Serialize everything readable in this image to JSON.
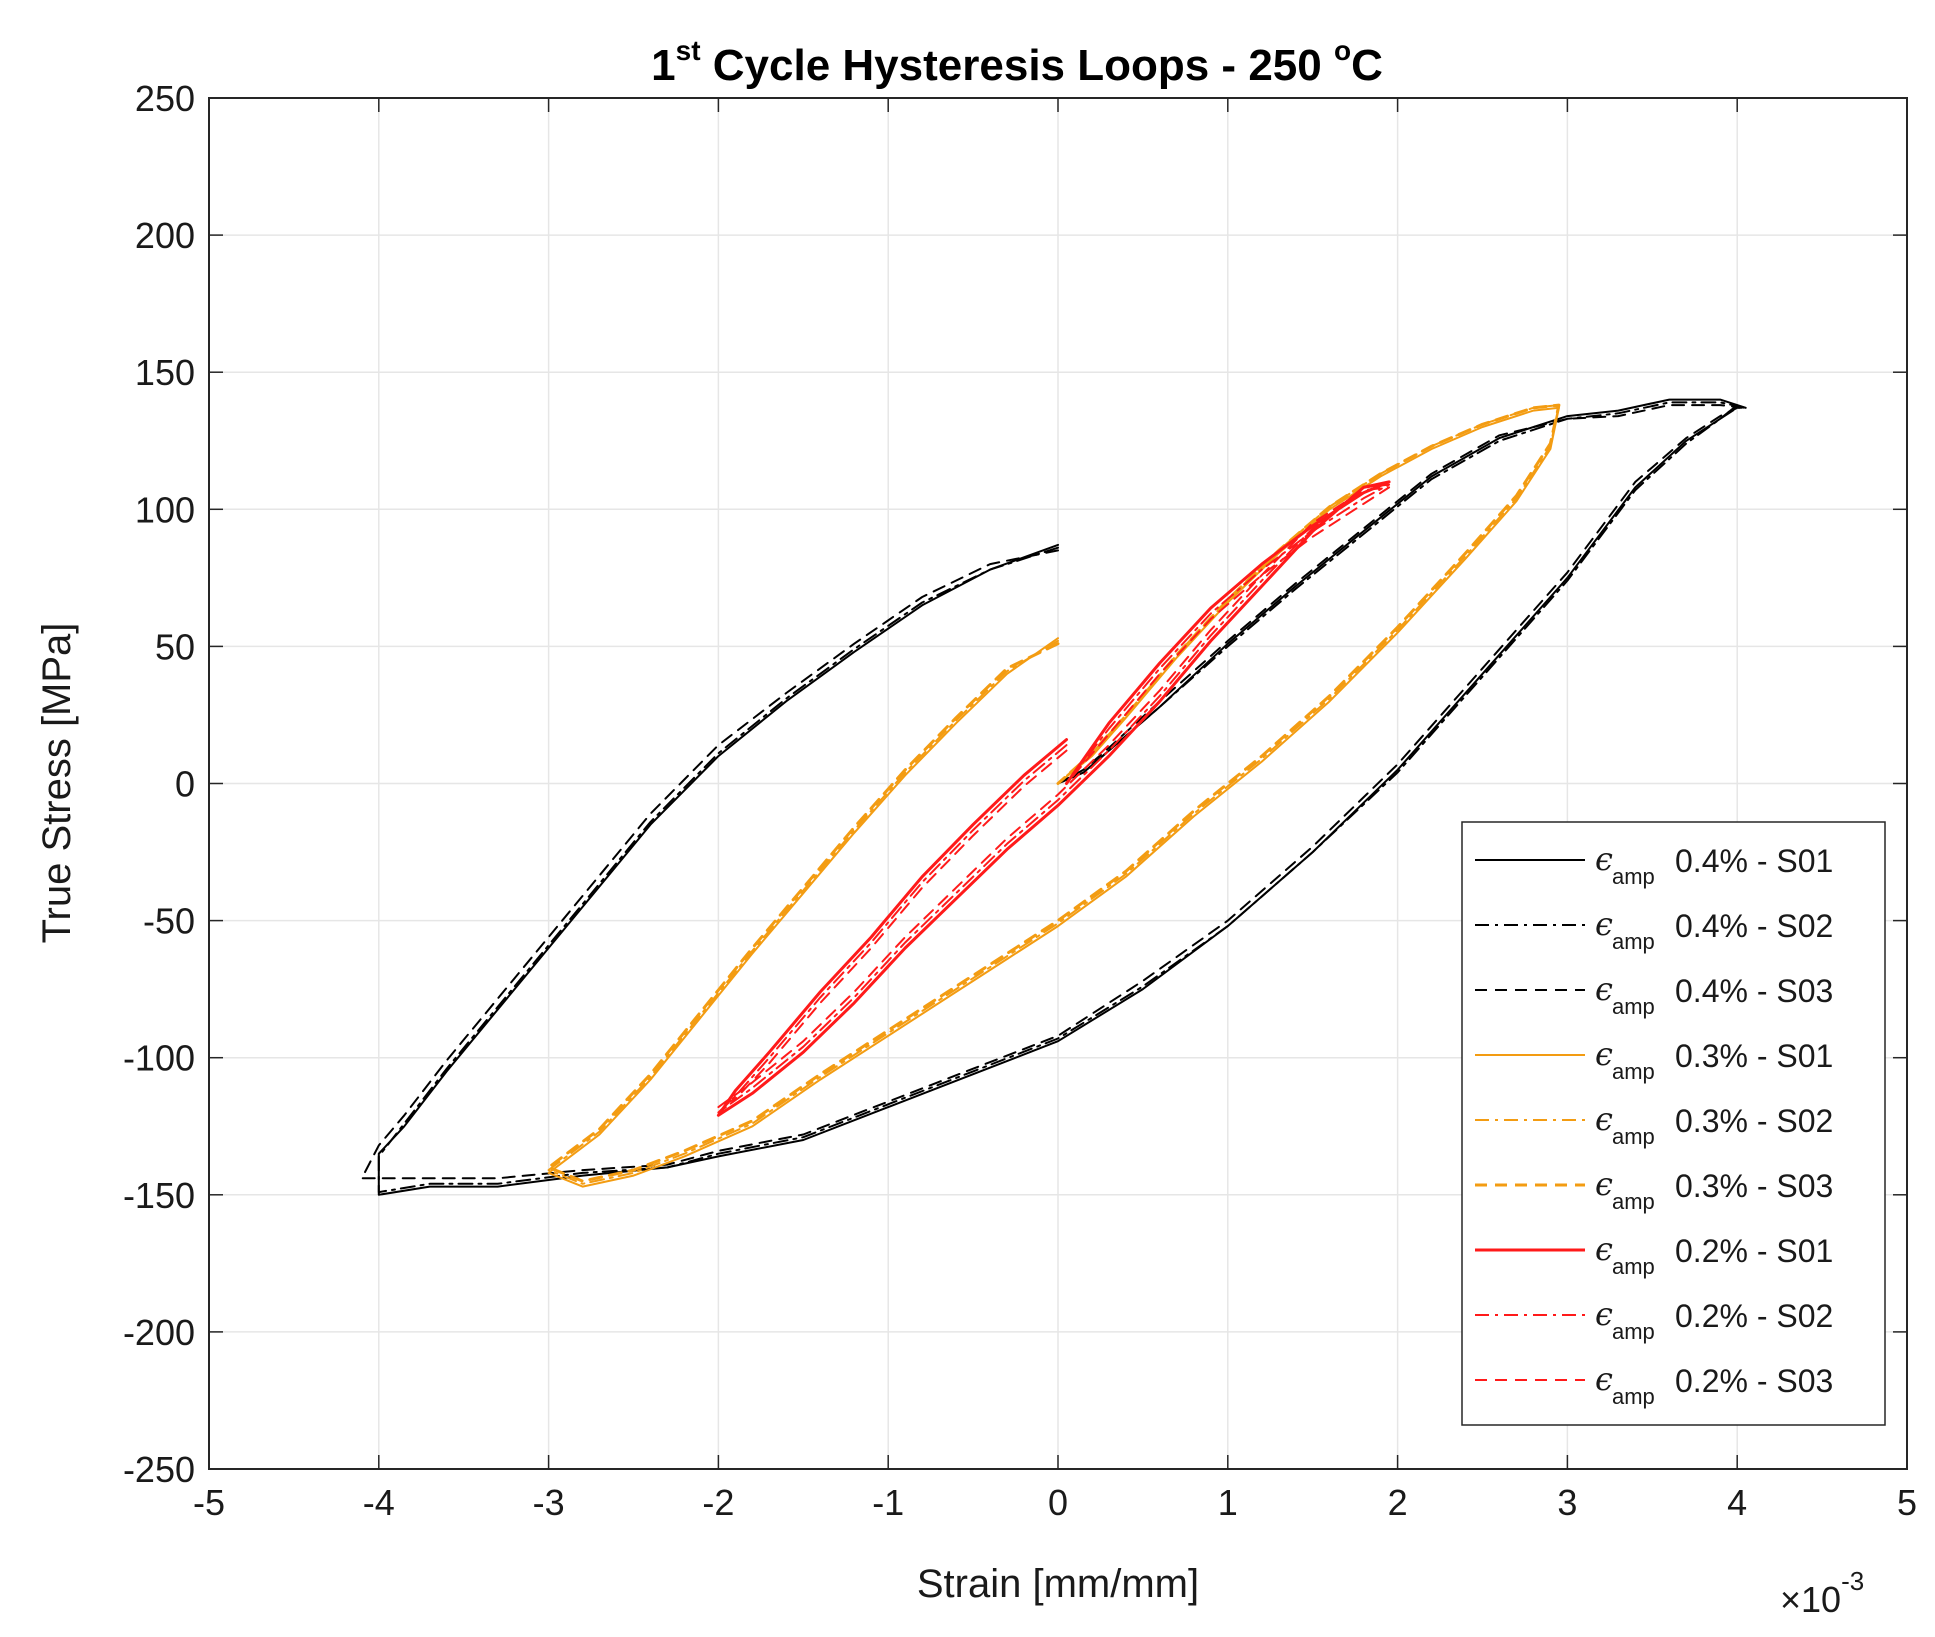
{
  "chart_data": {
    "type": "line",
    "title": {
      "prefix": "1",
      "superscript": "st",
      "middle": " Cycle Hysteresis Loops - 250 ",
      "degree": "o",
      "suffix": "C"
    },
    "xlabel": "Strain [mm/mm]",
    "ylabel": "True Stress [MPa]",
    "x_multiplier": {
      "base": "×10",
      "exponent": "-3"
    },
    "xlim": [
      -5,
      5
    ],
    "ylim": [
      -250,
      250
    ],
    "xticks": [
      -5,
      -4,
      -3,
      -2,
      -1,
      0,
      1,
      2,
      3,
      4,
      5
    ],
    "xtick_labels": [
      "-5",
      "-4",
      "-3",
      "-2",
      "-1",
      "0",
      "1",
      "2",
      "3",
      "4",
      "5"
    ],
    "yticks": [
      250,
      200,
      150,
      100,
      50,
      0,
      -50,
      -100,
      -150,
      -200,
      -250
    ],
    "ytick_labels": [
      "250",
      "200",
      "150",
      "100",
      "50",
      "0",
      "-50",
      "-100",
      "-150",
      "-200",
      "-250"
    ],
    "grid": true,
    "legend_position": "lower-right",
    "legend_symbol": "ϵ",
    "legend_subscript": "amp",
    "series": [
      {
        "name": "0.4% - S01",
        "color": "#000000",
        "style": "solid",
        "weight": "thin",
        "x": [
          0.0,
          -0.4,
          -0.8,
          -1.2,
          -1.6,
          -2.0,
          -2.4,
          -2.8,
          -3.2,
          -3.6,
          -3.85,
          -4.0,
          -4.0,
          -3.7,
          -3.3,
          -2.8,
          -2.3,
          -2.0,
          -1.5,
          -1.0,
          -0.5,
          0.0,
          0.5,
          1.0,
          1.5,
          2.0,
          2.5,
          3.0,
          3.4,
          3.7,
          3.9,
          4.0,
          4.05,
          3.9,
          3.6,
          3.3,
          3.0,
          2.6,
          2.2,
          1.8,
          1.4,
          1.0,
          0.6,
          0.3,
          0.15,
          0.0
        ],
        "y": [
          87,
          78,
          65,
          48,
          30,
          10,
          -15,
          -45,
          -75,
          -105,
          -125,
          -135,
          -150,
          -147,
          -147,
          -143,
          -140,
          -136,
          -130,
          -118,
          -106,
          -94,
          -75,
          -52,
          -25,
          5,
          40,
          75,
          108,
          125,
          133,
          138,
          137,
          140,
          140,
          136,
          134,
          126,
          112,
          92,
          72,
          51,
          28,
          12,
          4,
          0
        ]
      },
      {
        "name": "0.4% - S02",
        "color": "#000000",
        "style": "dashdot",
        "weight": "thin",
        "x": [
          0.0,
          -0.4,
          -0.8,
          -1.2,
          -1.6,
          -2.0,
          -2.4,
          -2.8,
          -3.2,
          -3.6,
          -3.85,
          -4.0,
          -4.0,
          -3.7,
          -3.3,
          -2.8,
          -2.3,
          -2.0,
          -1.5,
          -1.0,
          -0.5,
          0.0,
          0.5,
          1.0,
          1.5,
          2.0,
          2.5,
          3.0,
          3.4,
          3.7,
          3.9,
          4.0,
          4.05,
          3.9,
          3.6,
          3.3,
          3.0,
          2.6,
          2.2,
          1.8,
          1.4,
          1.0,
          0.6,
          0.3,
          0.15,
          0.0
        ],
        "y": [
          86,
          78,
          66,
          49,
          31,
          11,
          -14,
          -44,
          -74,
          -104,
          -124,
          -136,
          -149,
          -146,
          -146,
          -142,
          -140,
          -135,
          -129,
          -117,
          -105,
          -93,
          -74,
          -52,
          -25,
          4,
          39,
          74,
          107,
          124,
          133,
          137,
          137,
          139,
          139,
          135,
          133,
          125,
          111,
          91,
          71,
          50,
          28,
          12,
          4,
          0
        ]
      },
      {
        "name": "0.4% - S03",
        "color": "#000000",
        "style": "dashed",
        "weight": "thin",
        "x": [
          0.0,
          -0.4,
          -0.8,
          -1.2,
          -1.6,
          -2.0,
          -2.4,
          -2.8,
          -3.2,
          -3.6,
          -3.85,
          -4.0,
          -4.1,
          -3.7,
          -3.3,
          -2.8,
          -2.3,
          -2.0,
          -1.5,
          -1.0,
          -0.5,
          0.0,
          0.5,
          1.0,
          1.5,
          2.0,
          2.5,
          3.0,
          3.4,
          3.7,
          3.9,
          4.0,
          4.05,
          3.9,
          3.6,
          3.3,
          3.0,
          2.6,
          2.2,
          1.8,
          1.4,
          1.0,
          0.6,
          0.3,
          0.15,
          0.0
        ],
        "y": [
          85,
          80,
          68,
          51,
          33,
          14,
          -11,
          -41,
          -71,
          -101,
          -121,
          -132,
          -144,
          -144,
          -144,
          -141,
          -139,
          -134,
          -128,
          -116,
          -104,
          -92,
          -72,
          -50,
          -23,
          7,
          42,
          77,
          110,
          126,
          134,
          137,
          137,
          138,
          138,
          134,
          133,
          127,
          113,
          93,
          73,
          52,
          30,
          13,
          5,
          0
        ]
      },
      {
        "name": "0.3% - S01",
        "color": "#f39c12",
        "style": "solid",
        "weight": "thin",
        "x": [
          0.0,
          -0.3,
          -0.6,
          -0.9,
          -1.2,
          -1.5,
          -1.8,
          -2.1,
          -2.4,
          -2.7,
          -3.0,
          -2.8,
          -2.5,
          -2.2,
          -1.8,
          -1.4,
          -1.0,
          -0.6,
          -0.3,
          0.0,
          0.4,
          0.8,
          1.2,
          1.6,
          2.0,
          2.4,
          2.7,
          2.9,
          2.95,
          2.8,
          2.5,
          2.2,
          1.9,
          1.6,
          1.3,
          1.0,
          0.7,
          0.4,
          0.2,
          0.0
        ],
        "y": [
          53,
          40,
          22,
          3,
          -18,
          -40,
          -62,
          -85,
          -108,
          -128,
          -142,
          -147,
          -143,
          -136,
          -125,
          -108,
          -92,
          -76,
          -64,
          -52,
          -34,
          -12,
          8,
          30,
          55,
          82,
          103,
          122,
          137,
          136,
          130,
          122,
          112,
          100,
          84,
          66,
          46,
          24,
          10,
          0
        ]
      },
      {
        "name": "0.3% - S02",
        "color": "#f39c12",
        "style": "dashdot",
        "weight": "thin",
        "x": [
          0.0,
          -0.3,
          -0.6,
          -0.9,
          -1.2,
          -1.5,
          -1.8,
          -2.1,
          -2.4,
          -2.7,
          -3.0,
          -2.8,
          -2.5,
          -2.2,
          -1.8,
          -1.4,
          -1.0,
          -0.6,
          -0.3,
          0.0,
          0.4,
          0.8,
          1.2,
          1.6,
          2.0,
          2.4,
          2.7,
          2.9,
          2.95,
          2.8,
          2.5,
          2.2,
          1.9,
          1.6,
          1.3,
          1.0,
          0.7,
          0.4,
          0.2,
          0.0
        ],
        "y": [
          52,
          41,
          23,
          4,
          -17,
          -39,
          -61,
          -84,
          -107,
          -127,
          -141,
          -146,
          -142,
          -135,
          -124,
          -107,
          -91,
          -75,
          -63,
          -51,
          -33,
          -11,
          9,
          31,
          56,
          83,
          104,
          123,
          138,
          137,
          131,
          123,
          113,
          101,
          85,
          67,
          47,
          25,
          11,
          0
        ]
      },
      {
        "name": "0.3% - S03",
        "color": "#f39c12",
        "style": "dashed",
        "weight": "thick",
        "x": [
          0.0,
          -0.3,
          -0.6,
          -0.9,
          -1.2,
          -1.5,
          -1.8,
          -2.1,
          -2.4,
          -2.7,
          -3.0,
          -2.8,
          -2.5,
          -2.2,
          -1.8,
          -1.4,
          -1.0,
          -0.6,
          -0.3,
          0.0,
          0.4,
          0.8,
          1.2,
          1.6,
          2.0,
          2.4,
          2.7,
          2.9,
          2.95,
          2.8,
          2.5,
          2.2,
          1.9,
          1.6,
          1.3,
          1.0,
          0.7,
          0.4,
          0.2,
          0.0
        ],
        "y": [
          51,
          42,
          24,
          5,
          -16,
          -38,
          -60,
          -83,
          -106,
          -126,
          -140,
          -145,
          -141,
          -134,
          -123,
          -106,
          -90,
          -74,
          -62,
          -50,
          -32,
          -10,
          10,
          32,
          57,
          84,
          105,
          124,
          138,
          137,
          131,
          123,
          113,
          101,
          85,
          67,
          47,
          25,
          11,
          0
        ]
      },
      {
        "name": "0.2% - S01",
        "color": "#ff1a1a",
        "style": "solid",
        "weight": "thick",
        "x": [
          0.05,
          -0.2,
          -0.5,
          -0.8,
          -1.1,
          -1.4,
          -1.7,
          -1.9,
          -2.0,
          -1.8,
          -1.5,
          -1.2,
          -0.9,
          -0.6,
          -0.3,
          0.0,
          0.3,
          0.6,
          0.9,
          1.2,
          1.5,
          1.8,
          1.95,
          1.8,
          1.5,
          1.2,
          0.9,
          0.6,
          0.3,
          0.05
        ],
        "y": [
          16,
          3,
          -15,
          -34,
          -56,
          -76,
          -98,
          -112,
          -121,
          -113,
          -98,
          -80,
          -60,
          -42,
          -24,
          -8,
          10,
          30,
          52,
          72,
          92,
          108,
          110,
          106,
          94,
          80,
          64,
          44,
          22,
          0
        ]
      },
      {
        "name": "0.2% - S02",
        "color": "#ff1a1a",
        "style": "dashdot",
        "weight": "thin",
        "x": [
          0.05,
          -0.2,
          -0.5,
          -0.8,
          -1.1,
          -1.4,
          -1.7,
          -1.9,
          -2.0,
          -1.8,
          -1.5,
          -1.2,
          -0.9,
          -0.6,
          -0.3,
          0.0,
          0.3,
          0.6,
          0.9,
          1.2,
          1.5,
          1.8,
          1.95,
          1.8,
          1.5,
          1.2,
          0.9,
          0.6,
          0.3,
          0.05
        ],
        "y": [
          14,
          1,
          -17,
          -36,
          -58,
          -78,
          -100,
          -114,
          -120,
          -111,
          -96,
          -78,
          -58,
          -40,
          -22,
          -6,
          12,
          32,
          54,
          74,
          93,
          108,
          109,
          104,
          92,
          78,
          62,
          42,
          20,
          0
        ]
      },
      {
        "name": "0.2% - S03",
        "color": "#ff1a1a",
        "style": "dashed",
        "weight": "thin",
        "x": [
          0.05,
          -0.2,
          -0.5,
          -0.8,
          -1.1,
          -1.4,
          -1.7,
          -1.9,
          -2.0,
          -1.8,
          -1.5,
          -1.2,
          -0.9,
          -0.6,
          -0.3,
          0.0,
          0.3,
          0.6,
          0.9,
          1.2,
          1.5,
          1.8,
          1.95,
          1.8,
          1.5,
          1.2,
          0.9,
          0.6,
          0.3,
          0.05
        ],
        "y": [
          12,
          -1,
          -19,
          -38,
          -60,
          -80,
          -102,
          -115,
          -118,
          -109,
          -94,
          -76,
          -56,
          -38,
          -20,
          -4,
          14,
          34,
          56,
          76,
          95,
          107,
          108,
          102,
          90,
          76,
          60,
          40,
          18,
          0
        ]
      }
    ]
  }
}
